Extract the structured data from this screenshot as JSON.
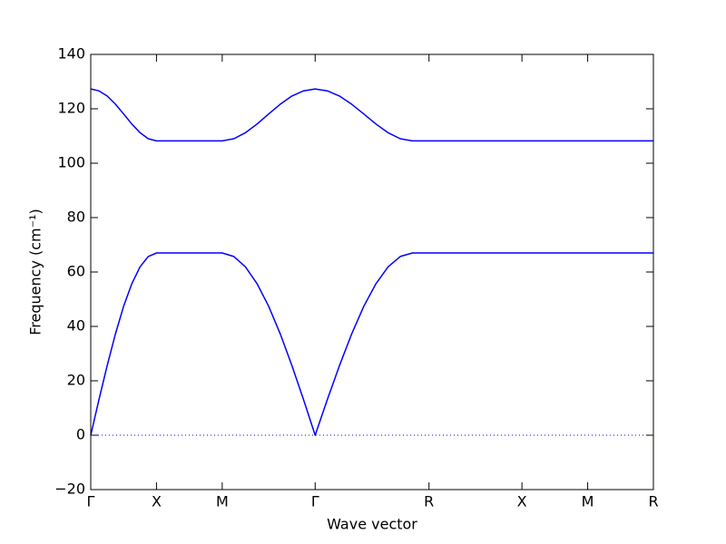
{
  "chart_data": {
    "type": "line",
    "xlabel": "Wave vector",
    "ylabel": "Frequency (cm⁻¹)",
    "x": [
      0,
      0.0625,
      0.125,
      0.1875,
      0.25,
      0.3125,
      0.375,
      0.4375,
      0.5,
      1.0,
      1.0884,
      1.1768,
      1.2651,
      1.3535,
      1.4419,
      1.5303,
      1.6186,
      1.707,
      1.7995,
      1.892,
      1.9845,
      2.077,
      2.1695,
      2.262,
      2.3545,
      2.447,
      2.573,
      4.28
    ],
    "series": [
      {
        "color": "#0000ff",
        "values": [
          0,
          13.1,
          25.6,
          37.2,
          47.4,
          55.7,
          61.9,
          65.7,
          67,
          67,
          65.7,
          61.9,
          55.7,
          47.4,
          37.2,
          25.6,
          13.1,
          0,
          13.1,
          25.6,
          37.2,
          47.4,
          55.7,
          61.9,
          65.7,
          67,
          67,
          67
        ]
      },
      {
        "color": "#0000ff",
        "values": [
          127.3,
          126.6,
          124.7,
          121.7,
          118.1,
          114.4,
          111.2,
          109.0,
          108.2,
          108.2,
          109.0,
          111.2,
          114.4,
          118.1,
          121.7,
          124.7,
          126.6,
          127.3,
          126.6,
          124.7,
          121.7,
          118.1,
          114.4,
          111.2,
          109.0,
          108.2,
          108.2,
          108.2
        ]
      }
    ],
    "xlim": [
      0,
      4.28
    ],
    "xticks": [
      {
        "value": 0,
        "label": "Γ"
      },
      {
        "value": 0.5,
        "label": "X"
      },
      {
        "value": 1.0,
        "label": "M"
      },
      {
        "value": 1.707,
        "label": "Γ"
      },
      {
        "value": 2.573,
        "label": "R"
      },
      {
        "value": 3.28,
        "label": "X"
      },
      {
        "value": 3.78,
        "label": "M"
      },
      {
        "value": 4.28,
        "label": "R"
      }
    ],
    "ylim": [
      -20,
      140
    ],
    "yticks": [
      {
        "value": -20,
        "label": "−20"
      },
      0,
      20,
      40,
      60,
      80,
      100,
      120,
      140
    ],
    "hline": 0,
    "hline_color": "#0000ff",
    "grid": false
  }
}
